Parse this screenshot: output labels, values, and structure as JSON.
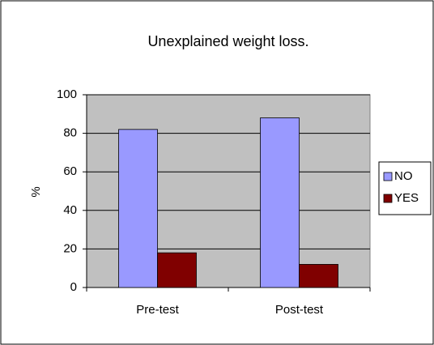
{
  "chart_data": {
    "type": "bar",
    "title": "Unexplained weight loss.",
    "y_label": "%",
    "categories": [
      "Pre-test",
      "Post-test"
    ],
    "series": [
      {
        "name": "NO",
        "color": "#9999ff",
        "values": [
          82,
          88
        ]
      },
      {
        "name": "YES",
        "color": "#800000",
        "values": [
          18,
          12
        ]
      }
    ],
    "ylim": [
      0,
      100
    ],
    "yticks": [
      0,
      20,
      40,
      60,
      80,
      100
    ],
    "grid": true,
    "legend": "right"
  }
}
